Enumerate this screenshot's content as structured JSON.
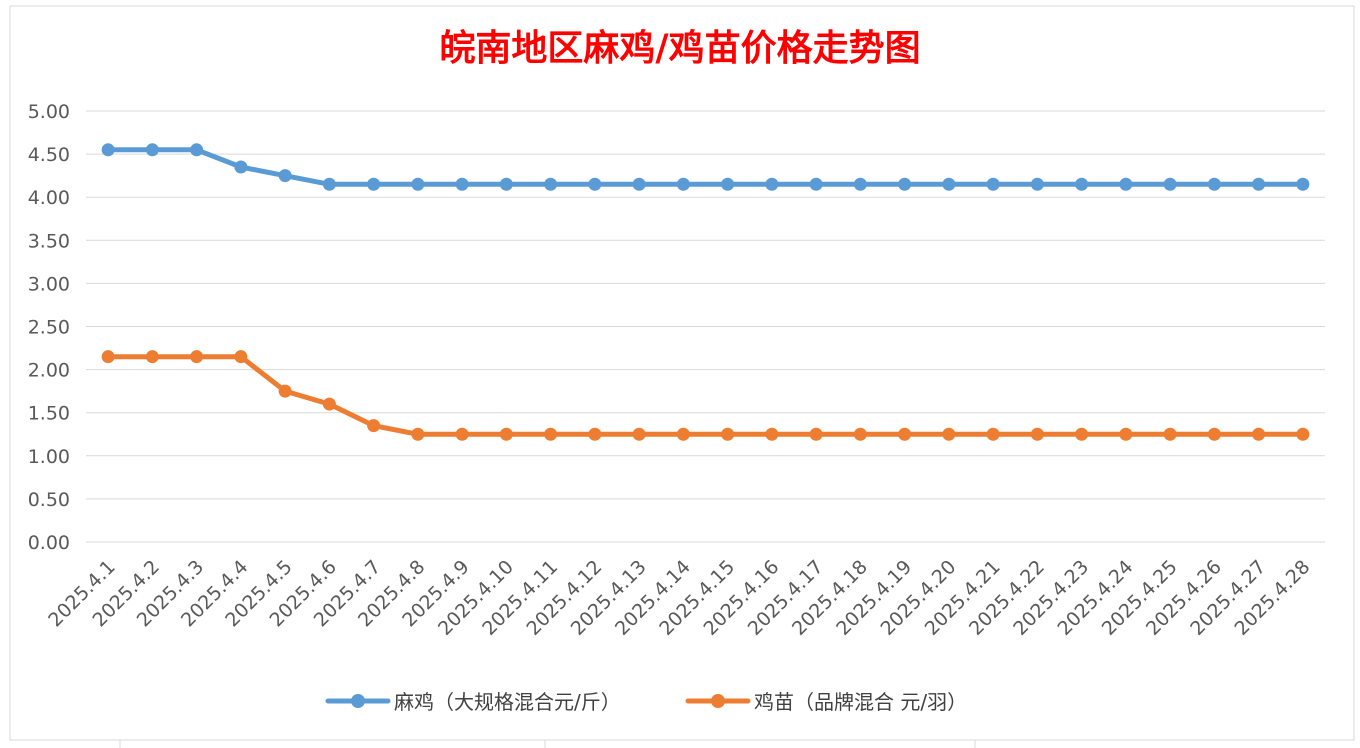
{
  "chart_data": {
    "type": "line",
    "title": "皖南地区麻鸡/鸡苗价格走势图",
    "xlabel": "",
    "ylabel": "",
    "ylim": [
      0,
      5
    ],
    "yticks": [
      "0.00",
      "0.50",
      "1.00",
      "1.50",
      "2.00",
      "2.50",
      "3.00",
      "3.50",
      "4.00",
      "4.50",
      "5.00"
    ],
    "grid": true,
    "legend_position": "bottom",
    "categories": [
      "2025.4.1",
      "2025.4.2",
      "2025.4.3",
      "2025.4.4",
      "2025.4.5",
      "2025.4.6",
      "2025.4.7",
      "2025.4.8",
      "2025.4.9",
      "2025.4.10",
      "2025.4.11",
      "2025.4.12",
      "2025.4.13",
      "2025.4.14",
      "2025.4.15",
      "2025.4.16",
      "2025.4.17",
      "2025.4.18",
      "2025.4.19",
      "2025.4.20",
      "2025.4.21",
      "2025.4.22",
      "2025.4.23",
      "2025.4.24",
      "2025.4.25",
      "2025.4.26",
      "2025.4.27",
      "2025.4.28"
    ],
    "series": [
      {
        "name": "麻鸡（大规格混合元/斤）",
        "color": "#5b9bd5",
        "values": [
          4.55,
          4.55,
          4.55,
          4.35,
          4.25,
          4.15,
          4.15,
          4.15,
          4.15,
          4.15,
          4.15,
          4.15,
          4.15,
          4.15,
          4.15,
          4.15,
          4.15,
          4.15,
          4.15,
          4.15,
          4.15,
          4.15,
          4.15,
          4.15,
          4.15,
          4.15,
          4.15,
          4.15
        ]
      },
      {
        "name": "鸡苗（品牌混合 元/羽）",
        "color": "#ed7d31",
        "values": [
          2.15,
          2.15,
          2.15,
          2.15,
          1.75,
          1.6,
          1.35,
          1.25,
          1.25,
          1.25,
          1.25,
          1.25,
          1.25,
          1.25,
          1.25,
          1.25,
          1.25,
          1.25,
          1.25,
          1.25,
          1.25,
          1.25,
          1.25,
          1.25,
          1.25,
          1.25,
          1.25,
          1.25
        ]
      }
    ]
  }
}
